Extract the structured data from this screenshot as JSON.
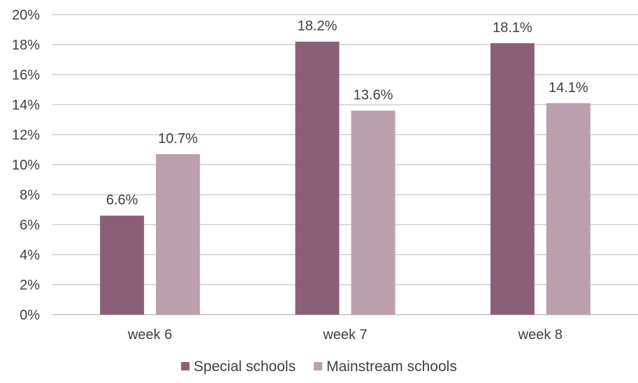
{
  "chart_data": {
    "type": "bar",
    "categories": [
      "week 6",
      "week 7",
      "week 8"
    ],
    "series": [
      {
        "name": "Special schools",
        "values": [
          6.6,
          18.2,
          18.1
        ],
        "labels": [
          "6.6%",
          "18.2%",
          "18.1%"
        ],
        "color": "#8b6077"
      },
      {
        "name": "Mainstream schools",
        "values": [
          10.7,
          13.6,
          14.1
        ],
        "labels": [
          "10.7%",
          "13.6%",
          "14.1%"
        ],
        "color": "#bb9fad"
      }
    ],
    "yticks": [
      "0%",
      "2%",
      "4%",
      "6%",
      "8%",
      "10%",
      "12%",
      "14%",
      "16%",
      "18%",
      "20%"
    ],
    "ylim": [
      0,
      20
    ],
    "grid": true,
    "legend_position": "bottom",
    "title": "",
    "xlabel": "",
    "ylabel": ""
  }
}
